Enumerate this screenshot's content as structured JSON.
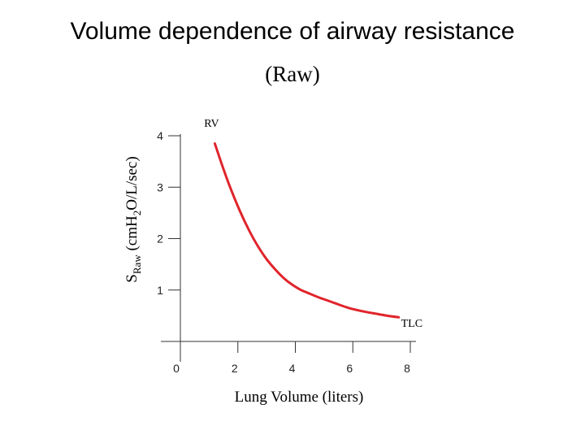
{
  "slide": {
    "title": "Volume dependence of airway resistance",
    "subtitle": "(Raw)"
  },
  "chart_data": {
    "type": "line",
    "title": "Volume dependence of airway resistance (Raw)",
    "xlabel": "Lung Volume (liters)",
    "ylabel": {
      "main": "S",
      "sub": "Raw",
      "rest_a": " (cmH",
      "sub2": "2",
      "rest_b": "O/L/sec)"
    },
    "xlim": [
      0,
      8
    ],
    "ylim": [
      0,
      4
    ],
    "x_ticks": [
      0,
      2,
      4,
      6,
      8
    ],
    "x_tick_labels": [
      "0",
      "2",
      "4",
      "6",
      "8"
    ],
    "y_ticks": [
      1,
      2,
      3,
      4
    ],
    "y_tick_labels": [
      "1",
      "2",
      "3",
      "4"
    ],
    "grid": false,
    "series": [
      {
        "color": "#e0242b",
        "x": [
          1.2,
          1.5,
          1.8,
          2.1,
          2.4,
          2.7,
          3.0,
          3.3,
          3.6,
          3.9,
          4.2,
          4.5,
          4.8,
          5.1,
          5.4,
          5.7,
          6.0,
          6.4,
          6.8,
          7.2,
          7.6
        ],
        "y": [
          3.85,
          3.35,
          2.9,
          2.5,
          2.15,
          1.85,
          1.6,
          1.4,
          1.23,
          1.1,
          1.0,
          0.93,
          0.86,
          0.8,
          0.74,
          0.68,
          0.63,
          0.58,
          0.54,
          0.5,
          0.47
        ]
      }
    ],
    "annotations": [
      {
        "text": "RV",
        "x": 1.2,
        "y": 3.85
      },
      {
        "text": "TLC",
        "x": 7.6,
        "y": 0.47
      }
    ]
  }
}
